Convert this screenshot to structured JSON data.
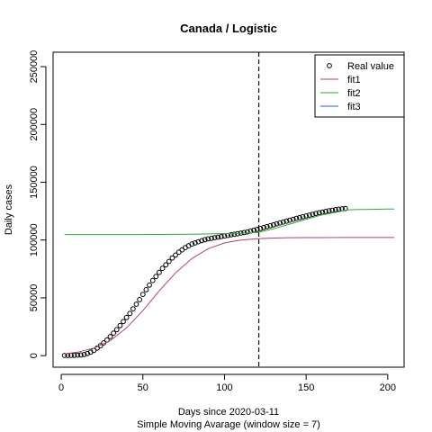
{
  "chart_data": {
    "type": "line",
    "title": "Canada / Logistic",
    "xlabel": "Days since 2020-03-11",
    "xlabel2": "Simple Moving Avarage (window size = 7)",
    "ylabel": "Daily cases",
    "xlim": [
      -5,
      210
    ],
    "ylim": [
      -10000,
      262500
    ],
    "xticks": [
      0,
      50,
      100,
      150,
      200
    ],
    "xtick_labels": [
      "0",
      "50",
      "100",
      "150",
      "200"
    ],
    "yticks": [
      0,
      50000,
      100000,
      150000,
      200000,
      250000
    ],
    "ytick_labels": [
      "0",
      "50000",
      "100000",
      "150000",
      "200000",
      "250000"
    ],
    "grid": false,
    "legend_position": "top-right",
    "vline": {
      "x": 121,
      "style": "dashed"
    },
    "series": [
      {
        "name": "Real value",
        "kind": "points",
        "color": "#000000",
        "x": [
          2,
          4,
          6,
          8,
          10,
          12,
          14,
          16,
          18,
          20,
          22,
          24,
          26,
          28,
          30,
          32,
          34,
          36,
          38,
          40,
          42,
          44,
          46,
          48,
          50,
          52,
          54,
          56,
          58,
          60,
          62,
          64,
          66,
          68,
          70,
          72,
          74,
          76,
          78,
          80,
          82,
          84,
          86,
          88,
          90,
          92,
          94,
          96,
          98,
          100,
          102,
          104,
          106,
          108,
          110,
          112,
          114,
          116,
          118,
          120,
          122,
          124,
          126,
          128,
          130,
          132,
          134,
          136,
          138,
          140,
          142,
          144,
          146,
          148,
          150,
          152,
          154,
          156,
          158,
          160,
          162,
          164,
          166,
          168,
          170,
          172,
          174
        ],
        "y": [
          100,
          150,
          200,
          300,
          400,
          600,
          1000,
          1800,
          3000,
          4500,
          6500,
          8500,
          11000,
          13500,
          16500,
          19500,
          22500,
          26000,
          29500,
          33000,
          36500,
          40500,
          44500,
          48500,
          53000,
          57000,
          61000,
          65000,
          68500,
          72000,
          75500,
          78500,
          81500,
          84500,
          87000,
          89500,
          91500,
          93500,
          95000,
          96500,
          97500,
          98500,
          99500,
          100300,
          101000,
          101500,
          102000,
          102500,
          103000,
          103500,
          104000,
          104500,
          105000,
          105500,
          106000,
          106500,
          107000,
          107800,
          108500,
          109300,
          110000,
          110800,
          111600,
          112400,
          113200,
          114000,
          114800,
          115600,
          116400,
          117200,
          118000,
          118800,
          119500,
          120200,
          120900,
          121600,
          122300,
          123000,
          123600,
          124200,
          124800,
          125300,
          125800,
          126300,
          126700,
          127000,
          127300
        ]
      },
      {
        "name": "fit1",
        "kind": "line",
        "color": "#aa4466",
        "x": [
          2,
          10,
          20,
          30,
          40,
          50,
          60,
          70,
          80,
          90,
          100,
          110,
          120,
          130,
          140,
          150,
          160,
          170,
          180,
          190,
          200,
          204
        ],
        "y": [
          1500,
          3000,
          6500,
          13000,
          24000,
          39000,
          56000,
          71500,
          84000,
          92500,
          97500,
          100000,
          101200,
          101700,
          102000,
          102100,
          102150,
          102180,
          102200,
          102200,
          102200,
          102200
        ]
      },
      {
        "name": "fit2",
        "kind": "line",
        "color": "#33aa33",
        "x": [
          2,
          20,
          40,
          60,
          80,
          90,
          100,
          110,
          120,
          130,
          140,
          150,
          160,
          170,
          175,
          180,
          190,
          200,
          204
        ],
        "y": [
          104800,
          104800,
          104800,
          104850,
          105000,
          105300,
          105600,
          105800,
          106500,
          109700,
          113800,
          118000,
          121800,
          124500,
          126000,
          126300,
          126600,
          126800,
          126900
        ]
      },
      {
        "name": "fit3",
        "kind": "line",
        "color": "#2266cc",
        "x": [],
        "y": []
      }
    ]
  }
}
